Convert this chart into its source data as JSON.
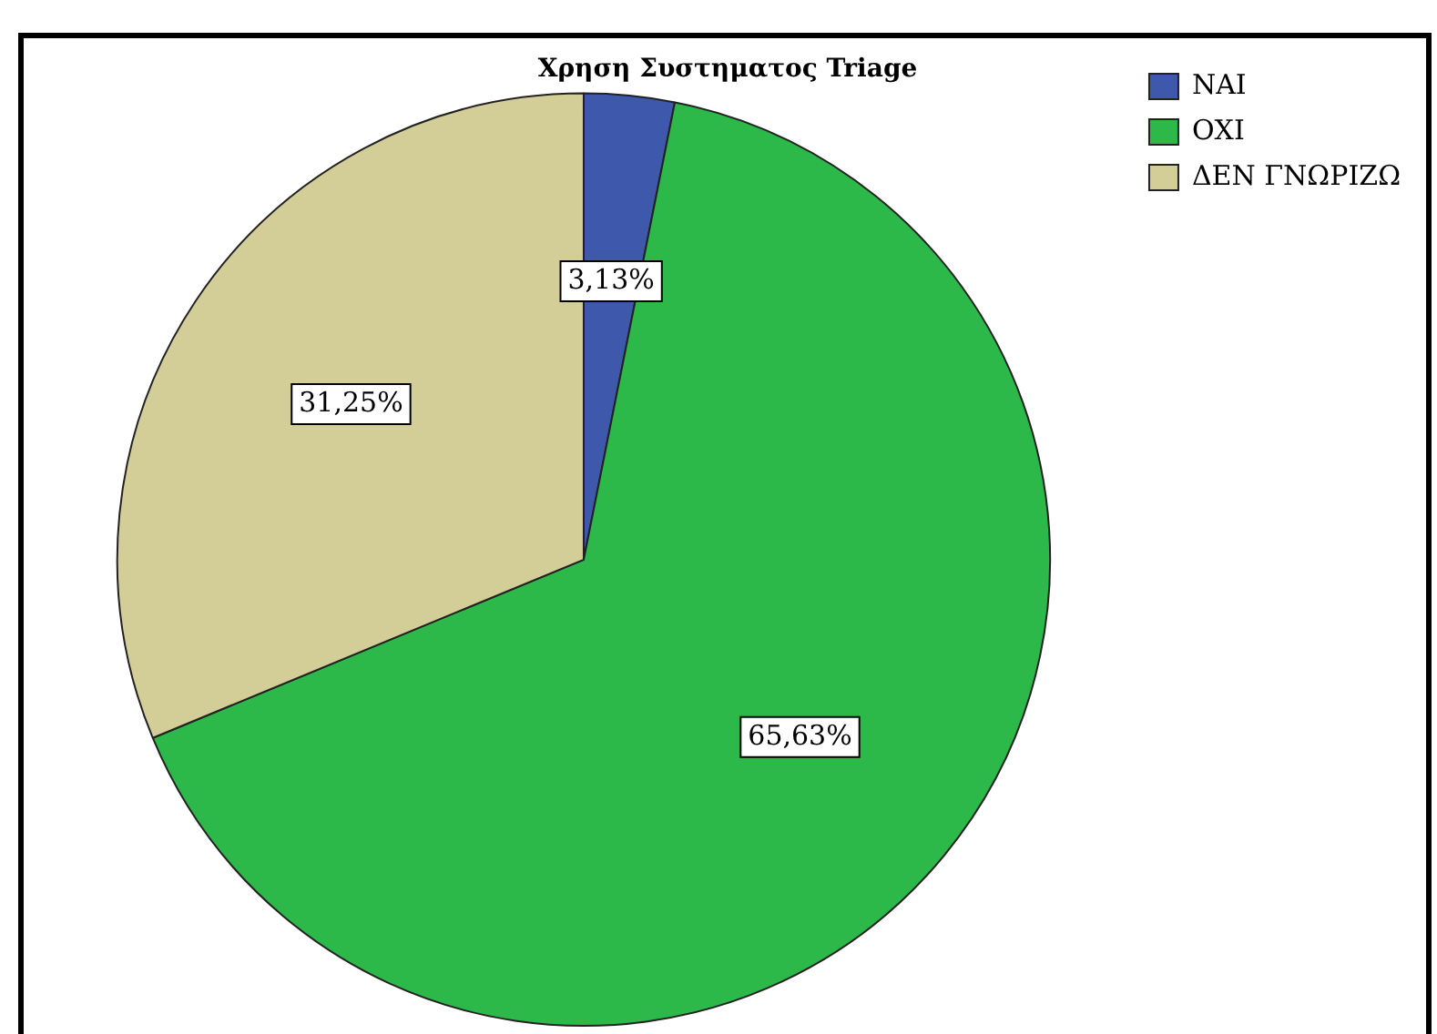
{
  "chart_data": {
    "type": "pie",
    "title": "Χρηση Συστηματος Triage",
    "categories": [
      "ΝΑΙ",
      "ΟΧΙ",
      "ΔΕΝ ΓΝΩΡΙΖΩ"
    ],
    "values": [
      3.13,
      65.63,
      31.25
    ],
    "colors": [
      "#3e58ac",
      "#2db84a",
      "#d3cd98"
    ],
    "value_labels": [
      "3,13%",
      "65,63%",
      "31,25%"
    ],
    "legend": "top right"
  }
}
